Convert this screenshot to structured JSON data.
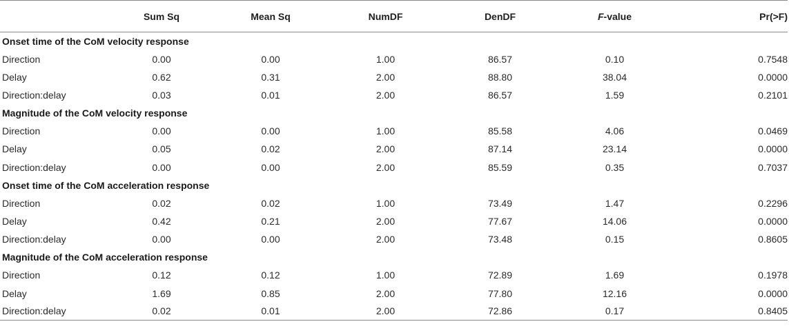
{
  "header": {
    "col0": "",
    "col1": "Sum Sq",
    "col2": "Mean Sq",
    "col3": "NumDF",
    "col4": "DenDF",
    "col5_italic": "F",
    "col5_rest": "-value",
    "col6": "Pr(>F)"
  },
  "sections": [
    {
      "title": "Onset time of the CoM velocity response",
      "rows": [
        {
          "label": "Direction",
          "sum_sq": "0.00",
          "mean_sq": "0.00",
          "numdf": "1.00",
          "dendf": "86.57",
          "f": "0.10",
          "p": "0.7548"
        },
        {
          "label": "Delay",
          "sum_sq": "0.62",
          "mean_sq": "0.31",
          "numdf": "2.00",
          "dendf": "88.80",
          "f": "38.04",
          "p": "0.0000"
        },
        {
          "label": "Direction:delay",
          "sum_sq": "0.03",
          "mean_sq": "0.01",
          "numdf": "2.00",
          "dendf": "86.57",
          "f": "1.59",
          "p": "0.2101"
        }
      ]
    },
    {
      "title": "Magnitude of the CoM velocity response",
      "rows": [
        {
          "label": "Direction",
          "sum_sq": "0.00",
          "mean_sq": "0.00",
          "numdf": "1.00",
          "dendf": "85.58",
          "f": "4.06",
          "p": "0.0469"
        },
        {
          "label": "Delay",
          "sum_sq": "0.05",
          "mean_sq": "0.02",
          "numdf": "2.00",
          "dendf": "87.14",
          "f": "23.14",
          "p": "0.0000"
        },
        {
          "label": "Direction:delay",
          "sum_sq": "0.00",
          "mean_sq": "0.00",
          "numdf": "2.00",
          "dendf": "85.59",
          "f": "0.35",
          "p": "0.7037"
        }
      ]
    },
    {
      "title": "Onset time of the CoM acceleration response",
      "rows": [
        {
          "label": "Direction",
          "sum_sq": "0.02",
          "mean_sq": "0.02",
          "numdf": "1.00",
          "dendf": "73.49",
          "f": "1.47",
          "p": "0.2296"
        },
        {
          "label": "Delay",
          "sum_sq": "0.42",
          "mean_sq": "0.21",
          "numdf": "2.00",
          "dendf": "77.67",
          "f": "14.06",
          "p": "0.0000"
        },
        {
          "label": "Direction:delay",
          "sum_sq": "0.00",
          "mean_sq": "0.00",
          "numdf": "2.00",
          "dendf": "73.48",
          "f": "0.15",
          "p": "0.8605"
        }
      ]
    },
    {
      "title": "Magnitude of the CoM acceleration response",
      "rows": [
        {
          "label": "Direction",
          "sum_sq": "0.12",
          "mean_sq": "0.12",
          "numdf": "1.00",
          "dendf": "72.89",
          "f": "1.69",
          "p": "0.1978"
        },
        {
          "label": "Delay",
          "sum_sq": "1.69",
          "mean_sq": "0.85",
          "numdf": "2.00",
          "dendf": "77.80",
          "f": "12.16",
          "p": "0.0000"
        },
        {
          "label": "Direction:delay",
          "sum_sq": "0.02",
          "mean_sq": "0.01",
          "numdf": "2.00",
          "dendf": "72.86",
          "f": "0.17",
          "p": "0.8405"
        }
      ]
    }
  ]
}
